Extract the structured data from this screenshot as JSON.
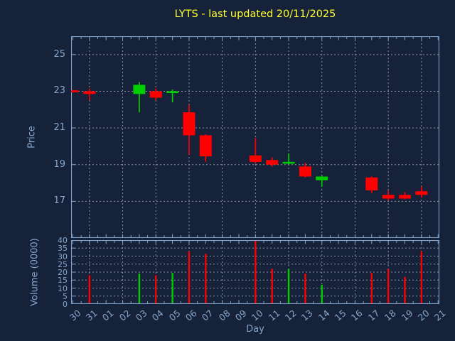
{
  "title": "LYTS - last updated 20/11/2025",
  "colors": {
    "background": "#16213a",
    "axis": "#7fa3cc",
    "tick_label": "#85a6cc",
    "grid": "#aab0b8",
    "title": "#ffff2b",
    "up": "#00ce00",
    "down": "#ff0000"
  },
  "chart_data": [
    {
      "type": "candlestick",
      "title": "LYTS - last updated 20/11/2025",
      "xlabel": "Day",
      "ylabel": "Price",
      "ylim": [
        15,
        26
      ],
      "yticks": [
        "17",
        "19",
        "21",
        "23",
        "25"
      ],
      "grid": true,
      "x_categories": [
        "30",
        "31",
        "01",
        "02",
        "03",
        "04",
        "05",
        "06",
        "07",
        "08",
        "09",
        "10",
        "11",
        "12",
        "13",
        "14",
        "15",
        "16",
        "17",
        "18",
        "19",
        "20",
        "21"
      ],
      "data": [
        {
          "day": "30",
          "open": 23.05,
          "high": 23.07,
          "low": 22.93,
          "close": 22.95,
          "direction": "down"
        },
        {
          "day": "31",
          "open": 23.0,
          "high": 23.15,
          "low": 22.5,
          "close": 22.85,
          "direction": "down"
        },
        {
          "day": "03",
          "open": 22.85,
          "high": 23.5,
          "low": 21.85,
          "close": 23.35,
          "direction": "up"
        },
        {
          "day": "04",
          "open": 23.0,
          "high": 23.15,
          "low": 22.5,
          "close": 22.65,
          "direction": "down"
        },
        {
          "day": "05",
          "open": 22.9,
          "high": 23.1,
          "low": 22.4,
          "close": 23.0,
          "direction": "up"
        },
        {
          "day": "06",
          "open": 21.85,
          "high": 22.25,
          "low": 19.55,
          "close": 20.6,
          "direction": "down"
        },
        {
          "day": "07",
          "open": 20.6,
          "high": 20.65,
          "low": 19.15,
          "close": 19.45,
          "direction": "down"
        },
        {
          "day": "10",
          "open": 19.5,
          "high": 20.45,
          "low": 19.05,
          "close": 19.15,
          "direction": "down"
        },
        {
          "day": "11",
          "open": 19.25,
          "high": 19.4,
          "low": 18.9,
          "close": 19.0,
          "direction": "down"
        },
        {
          "day": "12",
          "open": 19.05,
          "high": 19.6,
          "low": 19.0,
          "close": 19.15,
          "direction": "up"
        },
        {
          "day": "13",
          "open": 18.9,
          "high": 19.1,
          "low": 18.3,
          "close": 18.35,
          "direction": "down"
        },
        {
          "day": "14",
          "open": 18.15,
          "high": 18.4,
          "low": 17.8,
          "close": 18.35,
          "direction": "up"
        },
        {
          "day": "17",
          "open": 18.3,
          "high": 18.35,
          "low": 17.45,
          "close": 17.6,
          "direction": "down"
        },
        {
          "day": "18",
          "open": 17.35,
          "high": 17.6,
          "low": 17.05,
          "close": 17.15,
          "direction": "down"
        },
        {
          "day": "19",
          "open": 17.35,
          "high": 17.5,
          "low": 17.1,
          "close": 17.15,
          "direction": "down"
        },
        {
          "day": "20",
          "open": 17.55,
          "high": 17.8,
          "low": 17.2,
          "close": 17.35,
          "direction": "down"
        }
      ]
    },
    {
      "type": "bar",
      "xlabel": "Day",
      "ylabel": "Volume (0000)",
      "ylim": [
        0,
        40
      ],
      "yticks": [
        "0",
        "5",
        "10",
        "15",
        "20",
        "25",
        "30",
        "35",
        "40"
      ],
      "grid": true,
      "categories": [
        "31",
        "03",
        "04",
        "05",
        "06",
        "07",
        "10",
        "11",
        "12",
        "13",
        "14",
        "17",
        "18",
        "19",
        "20"
      ],
      "values": [
        18,
        19,
        18,
        19.5,
        33,
        31.5,
        39.5,
        22,
        22,
        19,
        12,
        19.5,
        22,
        17,
        33
      ],
      "bar_colors": [
        "down",
        "up",
        "down",
        "up",
        "down",
        "down",
        "down",
        "down",
        "up",
        "down",
        "up",
        "down",
        "down",
        "down",
        "down"
      ]
    }
  ],
  "labels": {
    "price_axis": "Price",
    "volume_axis": "Volume (0000)",
    "day_axis": "Day"
  }
}
